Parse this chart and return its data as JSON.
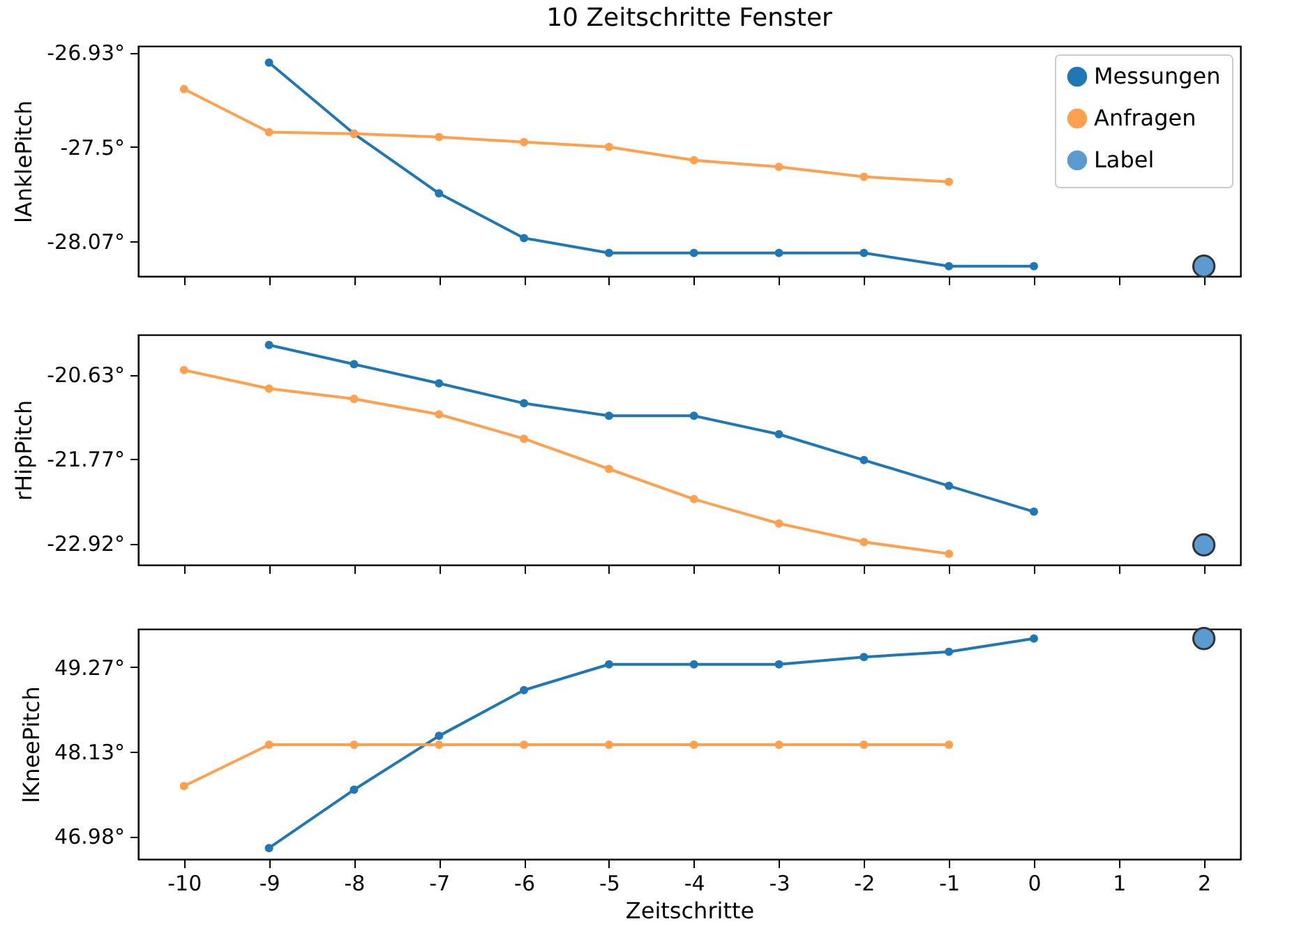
{
  "chart_data": [
    {
      "type": "line",
      "title": "10 Zeitschritte Fenster",
      "ylabel": "lAnklePitch",
      "xlim": [
        -10.54,
        2.43
      ],
      "xticks": [
        -10,
        -9,
        -8,
        -7,
        -6,
        -5,
        -4,
        -3,
        -2,
        -1,
        0,
        1,
        2
      ],
      "ylim": [
        -28.28,
        -26.89
      ],
      "yticks": [
        {
          "value": -26.93,
          "label": "-26.93°"
        },
        {
          "value": -27.5,
          "label": "-27.5°"
        },
        {
          "value": -28.07,
          "label": "-28.07°"
        }
      ],
      "tick_labels": "y",
      "legend": "top right",
      "marker": "circle",
      "series": [
        {
          "name": "Messungen",
          "color": "#1f77b4",
          "x": [
            -9,
            -8,
            -7,
            -6,
            -5,
            -4,
            -3,
            -2,
            -1,
            0
          ],
          "values": [
            -26.99,
            -27.42,
            -27.78,
            -28.05,
            -28.14,
            -28.14,
            -28.14,
            -28.14,
            -28.22,
            -28.22
          ]
        },
        {
          "name": "Anfragen",
          "color": "#ffa04f",
          "x": [
            -10,
            -9,
            -8,
            -7,
            -6,
            -5,
            -4,
            -3,
            -2,
            -1
          ],
          "values": [
            -27.15,
            -27.41,
            -27.42,
            -27.44,
            -27.47,
            -27.5,
            -27.58,
            -27.62,
            -27.68,
            -27.71
          ]
        },
        {
          "name": "Label",
          "type": "scatter",
          "color": "#5b9bd0",
          "x": [
            2
          ],
          "values": [
            -28.22
          ]
        }
      ]
    },
    {
      "type": "line",
      "ylabel": "rHipPitch",
      "xlim": [
        -10.54,
        2.43
      ],
      "xticks": [
        -10,
        -9,
        -8,
        -7,
        -6,
        -5,
        -4,
        -3,
        -2,
        -1,
        0,
        1,
        2
      ],
      "ylim": [
        -23.21,
        -20.09
      ],
      "yticks": [
        {
          "value": -20.63,
          "label": "-20.63°"
        },
        {
          "value": -21.77,
          "label": "-21.77°"
        },
        {
          "value": -22.92,
          "label": "-22.92°"
        }
      ],
      "tick_labels": "y",
      "marker": "circle",
      "series": [
        {
          "color": "#1f77b4",
          "x": [
            -9,
            -8,
            -7,
            -6,
            -5,
            -4,
            -3,
            -2,
            -1,
            0
          ],
          "values": [
            -20.23,
            -20.49,
            -20.75,
            -21.02,
            -21.19,
            -21.19,
            -21.44,
            -21.79,
            -22.14,
            -22.49
          ]
        },
        {
          "color": "#ffa04f",
          "x": [
            -10,
            -9,
            -8,
            -7,
            -6,
            -5,
            -4,
            -3,
            -2,
            -1
          ],
          "values": [
            -20.57,
            -20.82,
            -20.96,
            -21.17,
            -21.5,
            -21.91,
            -22.32,
            -22.65,
            -22.9,
            -23.06
          ]
        },
        {
          "type": "scatter",
          "color": "#5b9bd0",
          "x": [
            2
          ],
          "values": [
            -22.94
          ]
        }
      ]
    },
    {
      "type": "line",
      "ylabel": "lKneePitch",
      "xlabel": "Zeitschritte",
      "xlim": [
        -10.54,
        2.43
      ],
      "xticks": [
        -10,
        -9,
        -8,
        -7,
        -6,
        -5,
        -4,
        -3,
        -2,
        -1,
        0,
        1,
        2
      ],
      "ylim": [
        46.67,
        49.79
      ],
      "yticks": [
        {
          "value": 46.98,
          "label": "46.98°"
        },
        {
          "value": 48.13,
          "label": "48.13°"
        },
        {
          "value": 49.27,
          "label": "49.27°"
        }
      ],
      "marker": "circle",
      "series": [
        {
          "color": "#1f77b4",
          "x": [
            -9,
            -8,
            -7,
            -6,
            -5,
            -4,
            -3,
            -2,
            -1,
            0
          ],
          "values": [
            46.82,
            47.61,
            48.34,
            48.96,
            49.31,
            49.31,
            49.31,
            49.41,
            49.48,
            49.66
          ]
        },
        {
          "color": "#ffa04f",
          "x": [
            -10,
            -9,
            -8,
            -7,
            -6,
            -5,
            -4,
            -3,
            -2,
            -1
          ],
          "values": [
            47.66,
            48.22,
            48.22,
            48.22,
            48.22,
            48.22,
            48.22,
            48.22,
            48.22,
            48.22
          ]
        },
        {
          "type": "scatter",
          "color": "#5b9bd0",
          "x": [
            2
          ],
          "values": [
            49.66
          ]
        }
      ]
    }
  ]
}
